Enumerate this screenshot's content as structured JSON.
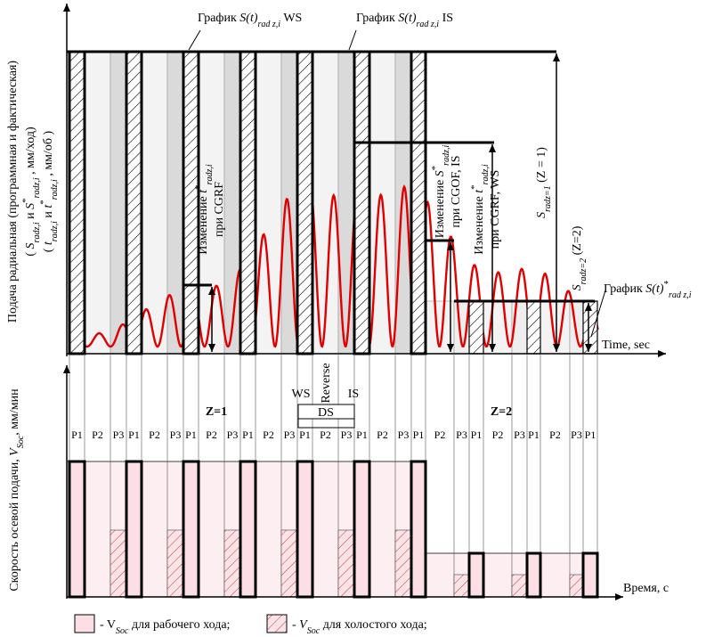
{
  "top_chart": {
    "graph_ws": [
      {
        "t": "График "
      },
      {
        "i": "S(t)"
      },
      {
        "sub": "rad z,i"
      },
      {
        "t": " WS"
      }
    ],
    "graph_is": [
      {
        "t": "График "
      },
      {
        "i": "S(t)"
      },
      {
        "sub": "rad z,i"
      },
      {
        "t": " IS"
      }
    ],
    "graph_actual": [
      {
        "t": "График "
      },
      {
        "i": "S(t)"
      },
      {
        "sup": "*"
      },
      {
        "sub": "rad z,i"
      }
    ],
    "y_label": [
      [
        {
          "t": "Подача радиальная (программная и фактическая)"
        }
      ],
      [
        {
          "t": "( "
        },
        {
          "i": "S"
        },
        {
          "sub": "radz,i"
        },
        {
          "t": " и "
        },
        {
          "i": "S"
        },
        {
          "sup": "*"
        },
        {
          "sub": "radz,i"
        },
        {
          "t": " , мм/ход)"
        }
      ],
      [
        {
          "t": "( "
        },
        {
          "i": "t"
        },
        {
          "sub": "radz,i"
        },
        {
          "t": " и "
        },
        {
          "i": "t"
        },
        {
          "sup": "*"
        },
        {
          "sub": "radz,i"
        },
        {
          "t": " , мм/об )"
        }
      ]
    ],
    "ann_cgrf": [
      [
        {
          "t": "Изменение "
        },
        {
          "i": "t"
        },
        {
          "sup": "*"
        },
        {
          "sub": "radz,i"
        }
      ],
      [
        {
          "t": "при CGRF"
        }
      ]
    ],
    "ann_cgof_is": [
      [
        {
          "t": "Изменение "
        },
        {
          "i": "S"
        },
        {
          "sup": "*"
        },
        {
          "sub": "radz,i"
        }
      ],
      [
        {
          "t": "при CGOF, IS"
        }
      ]
    ],
    "ann_cgrf_ws": [
      [
        {
          "t": "Изменение "
        },
        {
          "i": "t"
        },
        {
          "sup": "*"
        },
        {
          "sub": "radz,i"
        }
      ],
      [
        {
          "t": "при CGRF, WS"
        }
      ]
    ],
    "s_z1": [
      {
        "i": "S"
      },
      {
        "sub": "radz=1"
      },
      {
        "t": "  (Z = 1)"
      }
    ],
    "s_z2": [
      {
        "i": "S"
      },
      {
        "sub": "radz=2"
      },
      {
        "t": "  (Z=2)"
      }
    ],
    "x_label": "Time, sec"
  },
  "middle": {
    "ws": "WS",
    "reverse": "Reverse",
    "is": "IS",
    "ds": "DS",
    "z1": "Z=1",
    "z2": "Z=2",
    "phases": [
      "P1",
      "P2",
      "P3",
      "P1",
      "P2",
      "P3",
      "P1",
      "P2",
      "P3",
      "P1",
      "P2",
      "P3",
      "P1",
      "P2",
      "P3",
      "P1",
      "P2",
      "P3",
      "P1",
      "P2",
      "P3",
      "P1",
      "P2",
      "P3",
      "P1",
      "P2",
      "P3",
      "P1"
    ]
  },
  "bottom_chart": {
    "y_label": [
      {
        "t": "Скорость осевой подачи, "
      },
      {
        "i": "V"
      },
      {
        "sub": "Soc"
      },
      {
        "t": ", мм/мин"
      }
    ],
    "x_label": "Время, с"
  },
  "legend": [
    [
      {
        "t": "- V"
      },
      {
        "sub": "Soc"
      },
      {
        "t": " для рабочего хода;"
      }
    ],
    [
      {
        "t": "- "
      },
      {
        "i": "V"
      },
      {
        "sub": "Soc"
      },
      {
        "t": " для холостого хода;"
      }
    ]
  ]
}
